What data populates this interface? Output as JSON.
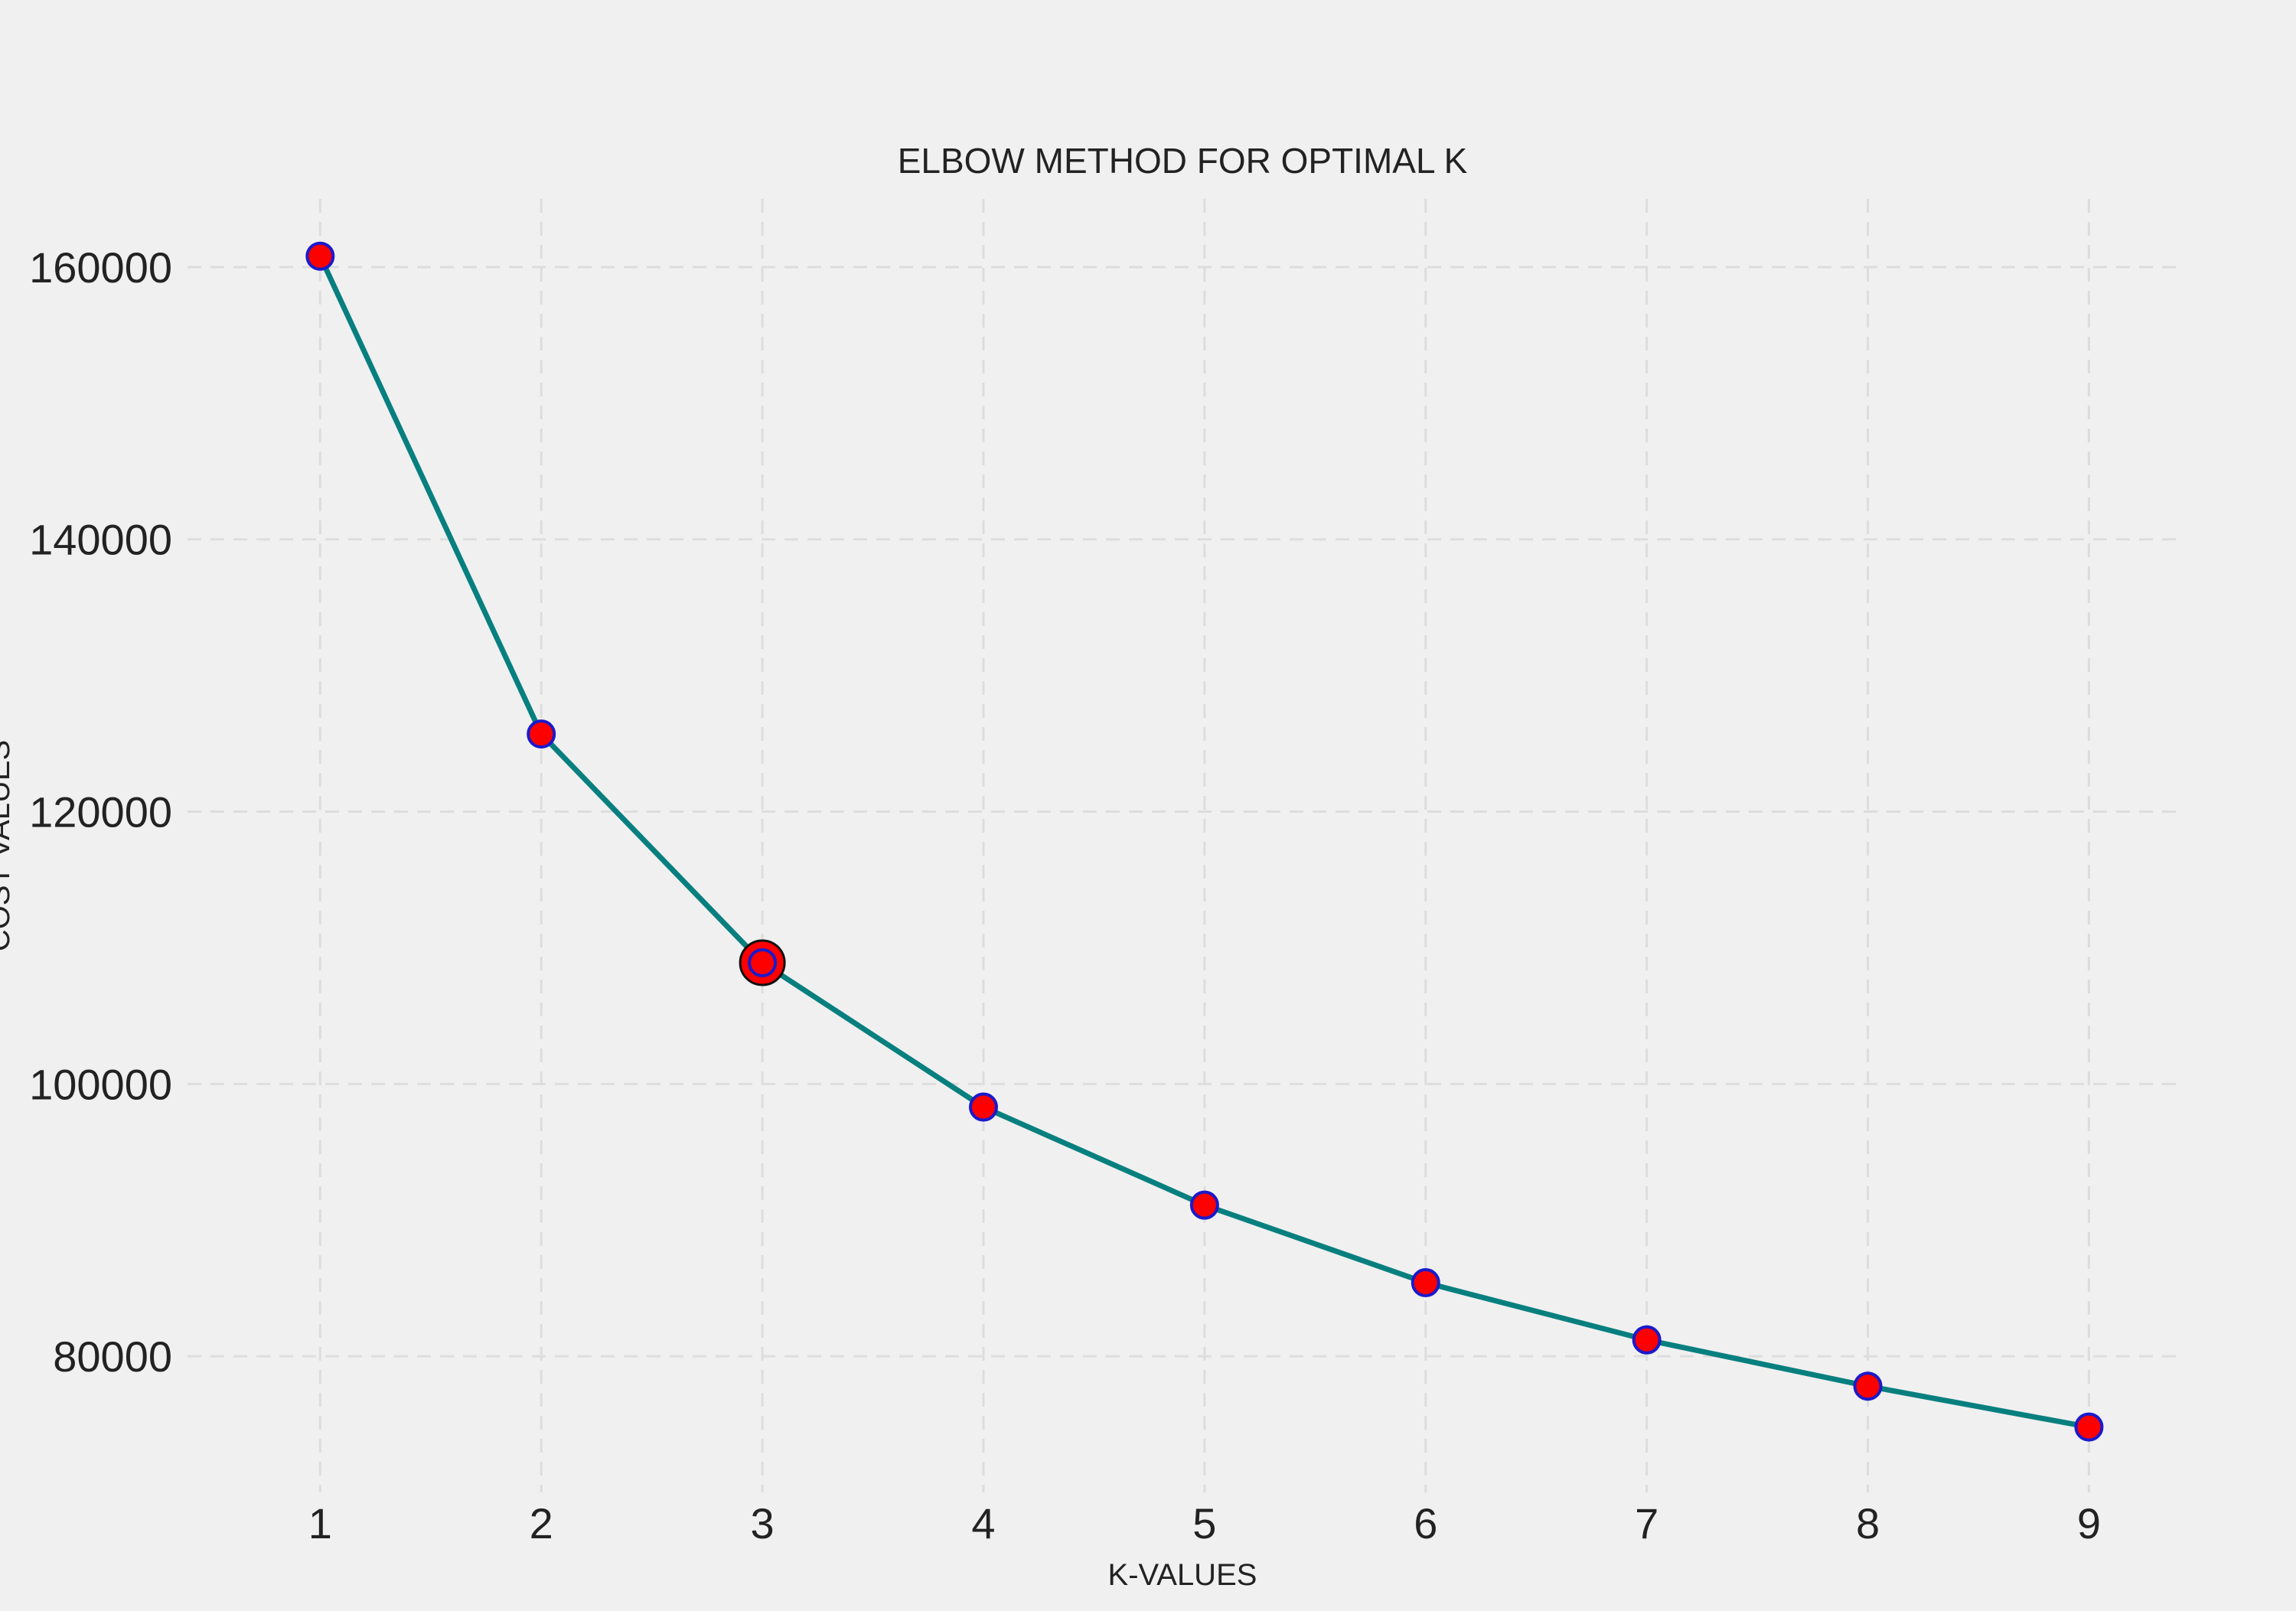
{
  "chart_data": {
    "type": "line",
    "title": "ELBOW METHOD FOR OPTIMAL K",
    "xlabel": "K-VALUES",
    "ylabel": "COST VALUES",
    "x": [
      1,
      2,
      3,
      4,
      5,
      6,
      7,
      8,
      9
    ],
    "series": [
      {
        "values": [
          160800,
          125700,
          108900,
          98300,
          91100,
          85400,
          81200,
          77800,
          74800
        ]
      }
    ],
    "highlight": {
      "x": 3,
      "y": 108900
    },
    "xticks": [
      "1",
      "2",
      "3",
      "4",
      "5",
      "6",
      "7",
      "8",
      "9"
    ],
    "yticks": [
      "80000",
      "100000",
      "120000",
      "140000",
      "160000"
    ],
    "xlim": [
      0.4,
      9.4
    ],
    "ylim": [
      70000,
      165000
    ],
    "grid": true,
    "legend": "none",
    "colors": {
      "background": "#f0f0f0",
      "grid": "#dddddd",
      "line": "#087f7f",
      "marker_fill": "#ff0000",
      "marker_edge": "#1a1acc",
      "highlight_edge": "#111111"
    }
  }
}
